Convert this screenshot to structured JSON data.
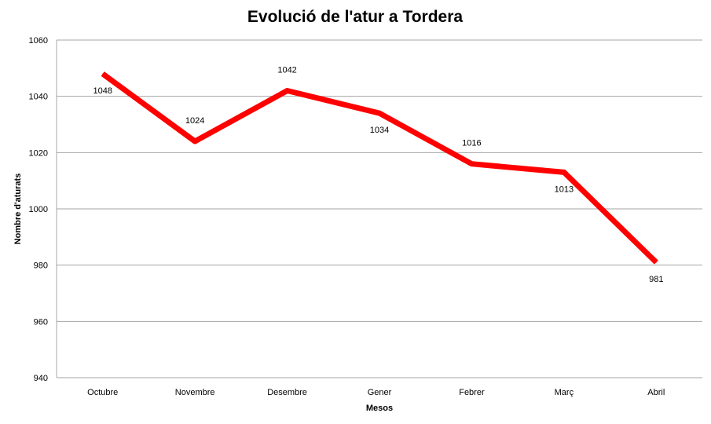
{
  "chart_data": {
    "type": "line",
    "title": "Evolució de l'atur a Tordera",
    "xlabel": "Mesos",
    "ylabel": "Nombre d'aturats",
    "categories": [
      "Octubre",
      "Novembre",
      "Desembre",
      "Gener",
      "Febrer",
      "Març",
      "Abril"
    ],
    "series": [
      {
        "values": [
          1048,
          1024,
          1042,
          1034,
          1016,
          1013,
          981
        ],
        "color": "#ff0000"
      }
    ],
    "ylim": [
      940,
      1060
    ],
    "yticks": [
      940,
      960,
      980,
      1000,
      1020,
      1040,
      1060
    ],
    "grid": true,
    "legend": false,
    "data_labels": [
      "1048",
      "1024",
      "1042",
      "1034",
      "1016",
      "1013",
      "981"
    ]
  }
}
